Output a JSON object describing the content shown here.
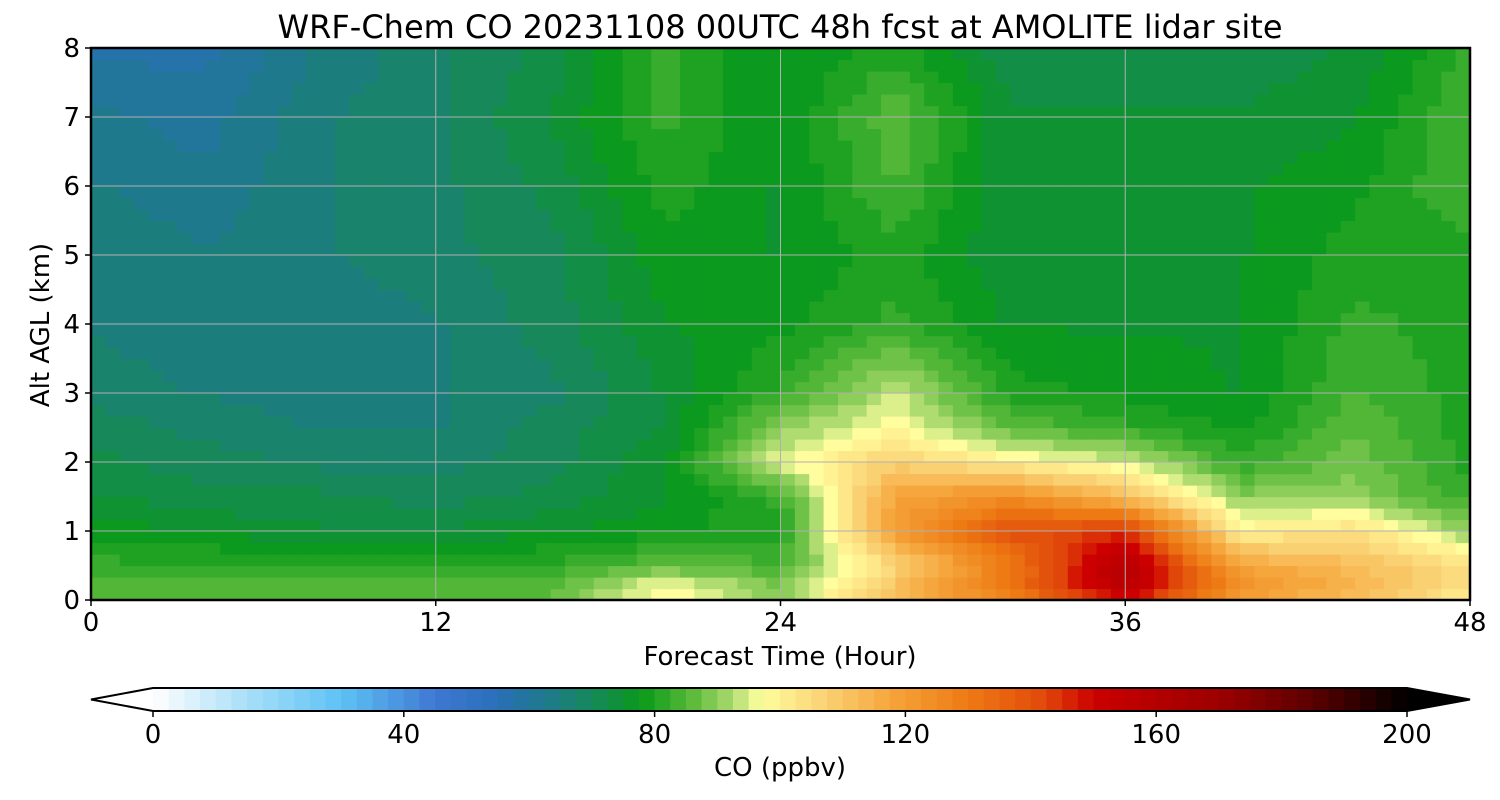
{
  "chart_data": {
    "type": "heatmap",
    "title": "WRF-Chem CO  20231108 00UTC 48h fcst at AMOLITE lidar site",
    "xlabel": "Forecast Time (Hour)",
    "ylabel": "Alt AGL (km)",
    "xlim": [
      0,
      48
    ],
    "ylim": [
      0,
      8
    ],
    "x_ticks": [
      "0",
      "12",
      "24",
      "36",
      "48"
    ],
    "y_ticks": [
      "0",
      "1",
      "2",
      "3",
      "4",
      "5",
      "6",
      "7",
      "8"
    ],
    "grid": true,
    "units": "ppbv",
    "x": [
      0,
      4,
      8,
      12,
      16,
      20,
      24,
      28,
      32,
      36,
      40,
      44,
      48
    ],
    "y": [
      0,
      0.25,
      0.5,
      1,
      1.5,
      2,
      2.5,
      3,
      4,
      5,
      6,
      7,
      8
    ],
    "z": [
      [
        86,
        86,
        84,
        84,
        86,
        100,
        90,
        112,
        128,
        150,
        120,
        112,
        100
      ],
      [
        86,
        85,
        84,
        84,
        85,
        96,
        88,
        110,
        132,
        158,
        122,
        114,
        104
      ],
      [
        82,
        82,
        80,
        80,
        82,
        86,
        84,
        106,
        130,
        160,
        118,
        112,
        104
      ],
      [
        78,
        76,
        74,
        74,
        76,
        78,
        80,
        120,
        140,
        145,
        100,
        104,
        90
      ],
      [
        74,
        72,
        72,
        70,
        72,
        76,
        82,
        118,
        125,
        112,
        90,
        90,
        82
      ],
      [
        72,
        70,
        68,
        68,
        70,
        76,
        96,
        108,
        100,
        95,
        82,
        88,
        80
      ],
      [
        70,
        68,
        66,
        66,
        70,
        74,
        90,
        98,
        86,
        82,
        78,
        86,
        80
      ],
      [
        68,
        66,
        65,
        66,
        68,
        74,
        82,
        94,
        80,
        78,
        76,
        84,
        80
      ],
      [
        66,
        64,
        64,
        66,
        70,
        76,
        78,
        82,
        76,
        76,
        76,
        82,
        80
      ],
      [
        66,
        64,
        66,
        68,
        70,
        78,
        76,
        80,
        74,
        76,
        76,
        80,
        80
      ],
      [
        64,
        62,
        66,
        68,
        72,
        80,
        76,
        84,
        74,
        76,
        76,
        78,
        84
      ],
      [
        62,
        60,
        66,
        68,
        74,
        82,
        76,
        86,
        74,
        74,
        74,
        76,
        84
      ],
      [
        58,
        58,
        64,
        68,
        72,
        82,
        76,
        80,
        72,
        72,
        72,
        74,
        82
      ]
    ],
    "colorbar": {
      "label": "CO  (ppbv)",
      "min": 0,
      "max": 200,
      "ticks": [
        "0",
        "40",
        "80",
        "120",
        "160",
        "200"
      ],
      "extend": "both"
    }
  },
  "palette": [
    [
      0,
      "#ffffff"
    ],
    [
      15,
      "#a8dff8"
    ],
    [
      30,
      "#5ec2f5"
    ],
    [
      45,
      "#3f78d2"
    ],
    [
      55,
      "#2a6fb8"
    ],
    [
      63,
      "#1e7a8a"
    ],
    [
      70,
      "#16885a"
    ],
    [
      78,
      "#0a9a1a"
    ],
    [
      86,
      "#5cba3a"
    ],
    [
      92,
      "#a5d86c"
    ],
    [
      97,
      "#ffff9f"
    ],
    [
      106,
      "#fbd77a"
    ],
    [
      118,
      "#f5a43a"
    ],
    [
      130,
      "#ee7a14"
    ],
    [
      142,
      "#e14a0a"
    ],
    [
      150,
      "#cc0000"
    ],
    [
      170,
      "#9c0000"
    ],
    [
      185,
      "#5a0000"
    ],
    [
      200,
      "#000000"
    ]
  ]
}
